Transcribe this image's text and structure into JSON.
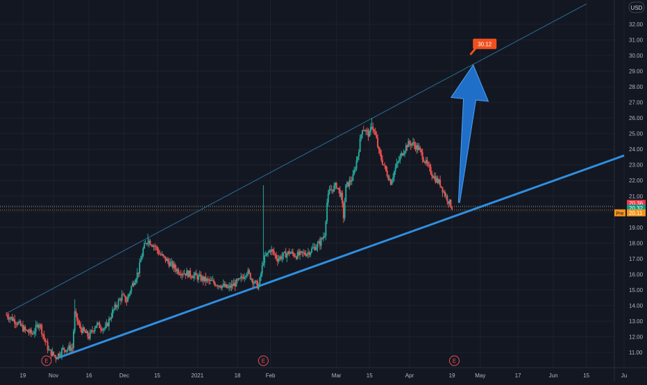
{
  "currency_label": "USD",
  "price_badges": [
    {
      "id": "last",
      "text": "20.36",
      "color": "#f23645"
    },
    {
      "id": "close",
      "text": "20.32",
      "color": "#089981"
    },
    {
      "id": "pre",
      "prefix": "Pre",
      "text": "20.11",
      "color": "#f7931a"
    }
  ],
  "target_label": "30.12",
  "earnings_marker_label": "E",
  "colors": {
    "background": "#131722",
    "grid": "#1e222d",
    "up": "#26a69a",
    "down": "#ef5350",
    "trendline": "#2f8fe0",
    "channel": "#2a6f99",
    "arrow": "#1f6fc9",
    "target": "#f0501e",
    "axis_text": "#b2b5be"
  },
  "chart_data": {
    "type": "candlestick",
    "y_axis": {
      "range": [
        10.3,
        32.8
      ],
      "ticks": [
        11,
        12,
        13,
        14,
        15,
        16,
        17,
        18,
        19,
        20,
        21,
        22,
        23,
        24,
        25,
        26,
        27,
        28,
        29,
        30,
        31,
        32
      ],
      "tick_format": "2dp",
      "position": "right"
    },
    "x_axis": {
      "ticks": [
        {
          "label": "19",
          "date": "2020-10-19"
        },
        {
          "label": "Nov",
          "date": "2020-11-01"
        },
        {
          "label": "16",
          "date": "2020-11-16"
        },
        {
          "label": "Dec",
          "date": "2020-12-01"
        },
        {
          "label": "15",
          "date": "2020-12-15"
        },
        {
          "label": "2021",
          "date": "2021-01-01"
        },
        {
          "label": "18",
          "date": "2021-01-18"
        },
        {
          "label": "Feb",
          "date": "2021-02-01"
        },
        {
          "label": "Mar",
          "date": "2021-03-01"
        },
        {
          "label": "15",
          "date": "2021-03-15"
        },
        {
          "label": "Apr",
          "date": "2021-04-01"
        },
        {
          "label": "19",
          "date": "2021-04-19"
        },
        {
          "label": "May",
          "date": "2021-05-01"
        },
        {
          "label": "17",
          "date": "2021-05-17"
        },
        {
          "label": "Jun",
          "date": "2021-06-01"
        },
        {
          "label": "15",
          "date": "2021-06-15"
        },
        {
          "label": "Ju",
          "date": "2021-07-01"
        }
      ],
      "range": [
        "2020-10-12",
        "2021-07-01"
      ]
    },
    "grid": true,
    "price_path": [
      [
        "2020-10-12",
        13.4
      ],
      [
        "2020-10-16",
        13.0
      ],
      [
        "2020-10-20",
        12.4
      ],
      [
        "2020-10-23",
        12.2
      ],
      [
        "2020-10-26",
        12.9
      ],
      [
        "2020-10-28",
        11.9
      ],
      [
        "2020-10-30",
        11.1
      ],
      [
        "2020-11-02",
        10.7
      ],
      [
        "2020-11-05",
        11.2
      ],
      [
        "2020-11-09",
        11.3
      ],
      [
        "2020-11-10",
        13.5
      ],
      [
        "2020-11-12",
        12.6
      ],
      [
        "2020-11-16",
        12.0
      ],
      [
        "2020-11-19",
        12.8
      ],
      [
        "2020-11-23",
        12.5
      ],
      [
        "2020-11-26",
        13.6
      ],
      [
        "2020-11-30",
        14.6
      ],
      [
        "2020-12-02",
        14.3
      ],
      [
        "2020-12-04",
        15.2
      ],
      [
        "2020-12-07",
        16.2
      ],
      [
        "2020-12-09",
        17.6
      ],
      [
        "2020-12-11",
        18.2
      ],
      [
        "2020-12-14",
        17.8
      ],
      [
        "2020-12-16",
        17.3
      ],
      [
        "2020-12-21",
        16.6
      ],
      [
        "2020-12-24",
        16.2
      ],
      [
        "2020-12-29",
        16.0
      ],
      [
        "2021-01-05",
        15.6
      ],
      [
        "2021-01-11",
        15.3
      ],
      [
        "2021-01-14",
        15.1
      ],
      [
        "2021-01-19",
        15.6
      ],
      [
        "2021-01-22",
        16.2
      ],
      [
        "2021-01-25",
        15.5
      ],
      [
        "2021-01-27",
        15.2
      ],
      [
        "2021-01-29",
        16.9
      ],
      [
        "2021-02-01",
        17.6
      ],
      [
        "2021-02-04",
        17.0
      ],
      [
        "2021-02-09",
        17.4
      ],
      [
        "2021-02-12",
        17.2
      ],
      [
        "2021-02-17",
        17.4
      ],
      [
        "2021-02-22",
        18.0
      ],
      [
        "2021-02-24",
        18.6
      ],
      [
        "2021-02-25",
        20.6
      ],
      [
        "2021-02-26",
        21.3
      ],
      [
        "2021-03-01",
        21.7
      ],
      [
        "2021-03-03",
        21.0
      ],
      [
        "2021-03-04",
        19.7
      ],
      [
        "2021-03-05",
        21.6
      ],
      [
        "2021-03-08",
        22.2
      ],
      [
        "2021-03-10",
        23.6
      ],
      [
        "2021-03-12",
        25.4
      ],
      [
        "2021-03-15",
        24.9
      ],
      [
        "2021-03-16",
        25.6
      ],
      [
        "2021-03-18",
        24.6
      ],
      [
        "2021-03-19",
        23.8
      ],
      [
        "2021-03-22",
        22.6
      ],
      [
        "2021-03-24",
        21.9
      ],
      [
        "2021-03-26",
        22.8
      ],
      [
        "2021-03-29",
        23.8
      ],
      [
        "2021-03-31",
        24.3
      ],
      [
        "2021-04-02",
        24.4
      ],
      [
        "2021-04-05",
        24.0
      ],
      [
        "2021-04-07",
        23.4
      ],
      [
        "2021-04-09",
        22.8
      ],
      [
        "2021-04-12",
        22.1
      ],
      [
        "2021-04-14",
        21.8
      ],
      [
        "2021-04-16",
        21.1
      ],
      [
        "2021-04-19",
        20.3
      ]
    ],
    "annotations": {
      "lower_trendline": {
        "from": [
          "2020-11-02",
          10.6
        ],
        "to": [
          "2021-07-01",
          23.6
        ]
      },
      "upper_channel": {
        "from": [
          "2020-10-12",
          13.5
        ],
        "to": [
          "2021-06-15",
          33.3
        ]
      },
      "arrow": {
        "from": [
          "2021-04-22",
          20.6
        ],
        "to": [
          "2021-04-28",
          29.4
        ]
      },
      "target_point": [
        "2021-04-27",
        30.1
      ],
      "earnings_dates": [
        "2020-10-29",
        "2021-01-29",
        "2021-04-20"
      ],
      "dotted_levels": [
        20.36,
        20.32,
        20.11
      ]
    }
  }
}
